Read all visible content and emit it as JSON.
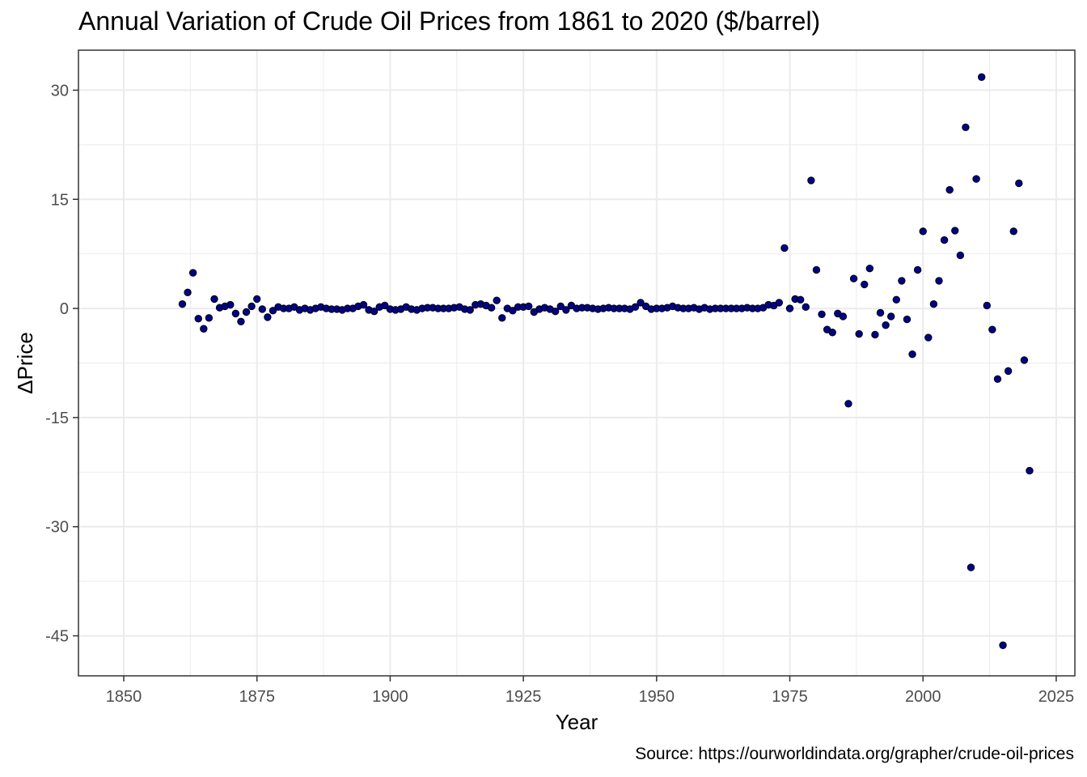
{
  "chart_data": {
    "type": "scatter",
    "title": "Annual Variation of Crude Oil Prices from 1861 to 2020 ($/barrel)",
    "caption": "Source: https://ourworldindata.org/grapher/crude-oil-prices",
    "xlabel": "Year",
    "ylabel": "ΔPrice",
    "xlim": [
      1841.5,
      2028.5
    ],
    "ylim": [
      -50.5,
      35.5
    ],
    "xticks": [
      1850,
      1875,
      1900,
      1925,
      1950,
      1975,
      2000,
      2025
    ],
    "yticks": [
      30,
      15,
      0,
      -15,
      -30,
      -45
    ],
    "grid": true,
    "legend": "none",
    "point_color": "#00008b",
    "point_stroke": "#000000",
    "grid_color": "#ebebeb",
    "series": [
      {
        "points": [
          [
            1861,
            0.6
          ],
          [
            1862,
            2.2
          ],
          [
            1863,
            4.9
          ],
          [
            1864,
            -1.4
          ],
          [
            1865,
            -2.8
          ],
          [
            1866,
            -1.3
          ],
          [
            1867,
            1.3
          ],
          [
            1868,
            0.1
          ],
          [
            1869,
            0.3
          ],
          [
            1870,
            0.5
          ],
          [
            1871,
            -0.7
          ],
          [
            1872,
            -1.8
          ],
          [
            1873,
            -0.5
          ],
          [
            1874,
            0.3
          ],
          [
            1875,
            1.3
          ],
          [
            1876,
            -0.1
          ],
          [
            1877,
            -1.2
          ],
          [
            1878,
            -0.3
          ],
          [
            1879,
            0.2
          ],
          [
            1880,
            0.0
          ],
          [
            1881,
            0.0
          ],
          [
            1882,
            0.2
          ],
          [
            1883,
            -0.2
          ],
          [
            1884,
            0.0
          ],
          [
            1885,
            -0.2
          ],
          [
            1886,
            0.0
          ],
          [
            1887,
            0.2
          ],
          [
            1888,
            0.0
          ],
          [
            1889,
            -0.1
          ],
          [
            1890,
            -0.1
          ],
          [
            1891,
            -0.2
          ],
          [
            1892,
            0.0
          ],
          [
            1893,
            0.0
          ],
          [
            1894,
            0.3
          ],
          [
            1895,
            0.5
          ],
          [
            1896,
            -0.2
          ],
          [
            1897,
            -0.4
          ],
          [
            1898,
            0.2
          ],
          [
            1899,
            0.4
          ],
          [
            1900,
            -0.1
          ],
          [
            1901,
            -0.2
          ],
          [
            1902,
            -0.1
          ],
          [
            1903,
            0.2
          ],
          [
            1904,
            -0.1
          ],
          [
            1905,
            -0.2
          ],
          [
            1906,
            0.0
          ],
          [
            1907,
            0.1
          ],
          [
            1908,
            0.1
          ],
          [
            1909,
            0.0
          ],
          [
            1910,
            0.0
          ],
          [
            1911,
            0.0
          ],
          [
            1912,
            0.1
          ],
          [
            1913,
            0.2
          ],
          [
            1914,
            -0.1
          ],
          [
            1915,
            -0.2
          ],
          [
            1916,
            0.5
          ],
          [
            1917,
            0.6
          ],
          [
            1918,
            0.4
          ],
          [
            1919,
            0.1
          ],
          [
            1920,
            1.1
          ],
          [
            1921,
            -1.3
          ],
          [
            1922,
            0.0
          ],
          [
            1923,
            -0.3
          ],
          [
            1924,
            0.2
          ],
          [
            1925,
            0.2
          ],
          [
            1926,
            0.3
          ],
          [
            1927,
            -0.5
          ],
          [
            1928,
            -0.1
          ],
          [
            1929,
            0.1
          ],
          [
            1930,
            -0.1
          ],
          [
            1931,
            -0.4
          ],
          [
            1932,
            0.3
          ],
          [
            1933,
            -0.2
          ],
          [
            1934,
            0.4
          ],
          [
            1935,
            0.0
          ],
          [
            1936,
            0.1
          ],
          [
            1937,
            0.1
          ],
          [
            1938,
            0.0
          ],
          [
            1939,
            -0.1
          ],
          [
            1940,
            0.0
          ],
          [
            1941,
            0.1
          ],
          [
            1942,
            0.0
          ],
          [
            1943,
            0.0
          ],
          [
            1944,
            0.0
          ],
          [
            1945,
            -0.1
          ],
          [
            1946,
            0.2
          ],
          [
            1947,
            0.8
          ],
          [
            1948,
            0.3
          ],
          [
            1949,
            -0.1
          ],
          [
            1950,
            0.0
          ],
          [
            1951,
            0.0
          ],
          [
            1952,
            0.1
          ],
          [
            1953,
            0.3
          ],
          [
            1954,
            0.1
          ],
          [
            1955,
            0.0
          ],
          [
            1956,
            0.0
          ],
          [
            1957,
            0.1
          ],
          [
            1958,
            -0.1
          ],
          [
            1959,
            0.1
          ],
          [
            1960,
            -0.1
          ],
          [
            1961,
            0.0
          ],
          [
            1962,
            0.0
          ],
          [
            1963,
            0.0
          ],
          [
            1964,
            0.0
          ],
          [
            1965,
            0.0
          ],
          [
            1966,
            0.0
          ],
          [
            1967,
            0.1
          ],
          [
            1968,
            0.0
          ],
          [
            1969,
            0.0
          ],
          [
            1970,
            0.1
          ],
          [
            1971,
            0.5
          ],
          [
            1972,
            0.4
          ],
          [
            1973,
            0.8
          ],
          [
            1974,
            8.3
          ],
          [
            1975,
            0.0
          ],
          [
            1976,
            1.3
          ],
          [
            1977,
            1.2
          ],
          [
            1978,
            0.2
          ],
          [
            1979,
            17.6
          ],
          [
            1980,
            5.3
          ],
          [
            1981,
            -0.8
          ],
          [
            1982,
            -2.9
          ],
          [
            1983,
            -3.3
          ],
          [
            1984,
            -0.7
          ],
          [
            1985,
            -1.1
          ],
          [
            1986,
            -13.1
          ],
          [
            1987,
            4.1
          ],
          [
            1988,
            -3.5
          ],
          [
            1989,
            3.3
          ],
          [
            1990,
            5.5
          ],
          [
            1991,
            -3.6
          ],
          [
            1992,
            -0.6
          ],
          [
            1993,
            -2.3
          ],
          [
            1994,
            -1.1
          ],
          [
            1995,
            1.2
          ],
          [
            1996,
            3.8
          ],
          [
            1997,
            -1.5
          ],
          [
            1998,
            -6.3
          ],
          [
            1999,
            5.3
          ],
          [
            2000,
            10.6
          ],
          [
            2001,
            -4.0
          ],
          [
            2002,
            0.6
          ],
          [
            2003,
            3.8
          ],
          [
            2004,
            9.4
          ],
          [
            2005,
            16.3
          ],
          [
            2006,
            10.7
          ],
          [
            2007,
            7.3
          ],
          [
            2008,
            24.9
          ],
          [
            2009,
            -35.6
          ],
          [
            2010,
            17.8
          ],
          [
            2011,
            31.8
          ],
          [
            2012,
            0.4
          ],
          [
            2013,
            -2.9
          ],
          [
            2014,
            -9.7
          ],
          [
            2015,
            -46.3
          ],
          [
            2016,
            -8.6
          ],
          [
            2017,
            10.6
          ],
          [
            2018,
            17.2
          ],
          [
            2019,
            -7.1
          ],
          [
            2020,
            -22.3
          ]
        ]
      }
    ]
  }
}
